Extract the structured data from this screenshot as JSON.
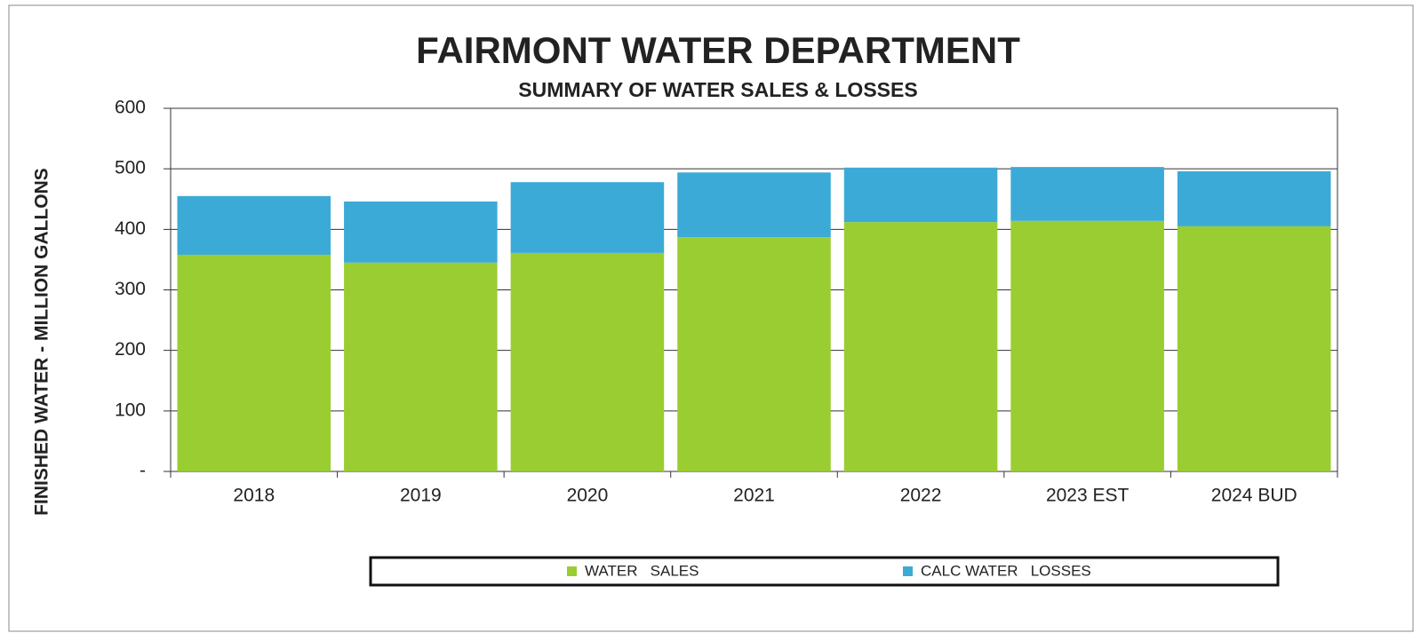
{
  "chart_data": {
    "type": "stacked_bar",
    "title": "FAIRMONT WATER DEPARTMENT",
    "subtitle": "SUMMARY OF WATER SALES & LOSSES",
    "y_label": "FINISHED WATER - MILLION GALLONS",
    "categories": [
      "2018",
      "2019",
      "2020",
      "2021",
      "2022",
      "2023 EST",
      "2024 BUD"
    ],
    "series": [
      {
        "name": "WATER   SALES",
        "color": "#9acd32",
        "values": [
          358,
          345,
          361,
          387,
          412,
          414,
          405
        ]
      },
      {
        "name": "CALC WATER   LOSSES",
        "color": "#3caad6",
        "values": [
          97,
          101,
          117,
          107,
          90,
          89,
          91
        ]
      }
    ],
    "ylim": [
      0,
      600
    ],
    "yticks": [
      {
        "value": 0,
        "label": "-"
      },
      100,
      200,
      300,
      400,
      500,
      600
    ],
    "grid": true,
    "legend": "bottom"
  }
}
